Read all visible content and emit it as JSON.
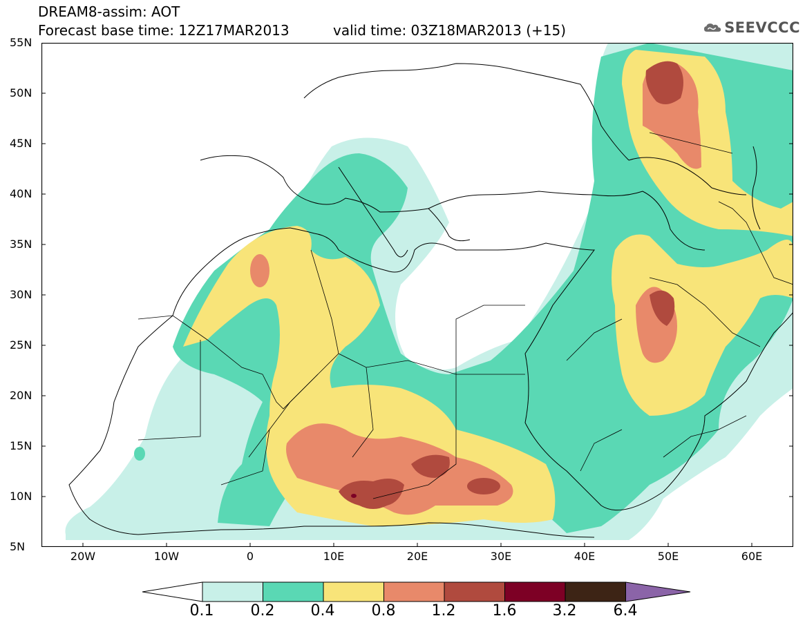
{
  "header": {
    "title": "DREAM8-assim: AOT",
    "base_time": "Forecast base time: 12Z17MAR2013",
    "valid_time": "valid time: 03Z18MAR2013 (+15)",
    "logo_text": "SEEVCCC",
    "logo_icon": "cloud-icon"
  },
  "map": {
    "lat_labels": [
      "55N",
      "50N",
      "45N",
      "40N",
      "35N",
      "30N",
      "25N",
      "20N",
      "15N",
      "10N",
      "5N"
    ],
    "lon_labels": [
      "20W",
      "10W",
      "0",
      "10E",
      "20E",
      "30E",
      "40E",
      "50E",
      "60E"
    ],
    "extent": {
      "lon_min": -25,
      "lon_max": 65,
      "lat_min": 5,
      "lat_max": 55
    }
  },
  "legend": {
    "levels": [
      "0.1",
      "0.2",
      "0.4",
      "0.8",
      "1.2",
      "1.6",
      "3.2",
      "6.4"
    ],
    "colors": [
      "#ffffff",
      "#c8f0e8",
      "#5ad8b4",
      "#f8e479",
      "#e8896a",
      "#b04a3e",
      "#7d0025",
      "#3d2415",
      "#8b64a8"
    ]
  }
}
